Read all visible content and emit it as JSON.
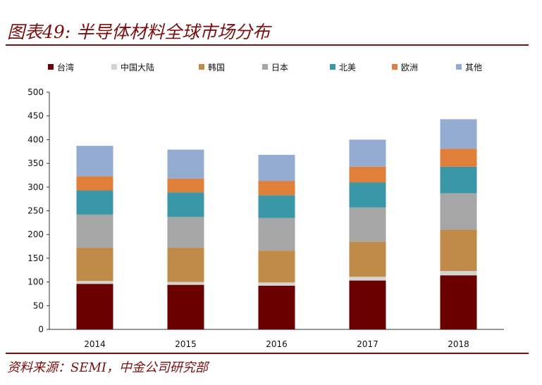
{
  "header": {
    "title": "图表49: 半导体材料全球市场分布"
  },
  "footer": {
    "source": "资料来源：SEMI，中金公司研究部"
  },
  "chart_data": {
    "type": "bar",
    "stacked": true,
    "title": "图表49: 半导体材料全球市场分布",
    "categories": [
      "2014",
      "2015",
      "2016",
      "2017",
      "2018"
    ],
    "ylim": [
      0,
      500
    ],
    "yticks": [
      0,
      50,
      100,
      150,
      200,
      250,
      300,
      350,
      400,
      450,
      500
    ],
    "legend_position": "top",
    "series": [
      {
        "name": "台湾",
        "color": "#6a0000",
        "values": [
          96,
          94,
          92,
          103,
          114
        ]
      },
      {
        "name": "中国大陆",
        "color": "#d3d3d3",
        "values": [
          6,
          6,
          7,
          8,
          9
        ]
      },
      {
        "name": "韩国",
        "color": "#c08a48",
        "values": [
          70,
          72,
          67,
          74,
          87
        ]
      },
      {
        "name": "日本",
        "color": "#a6a6a6",
        "values": [
          70,
          65,
          69,
          72,
          77
        ]
      },
      {
        "name": "北美",
        "color": "#3a97a8",
        "values": [
          51,
          52,
          48,
          53,
          56
        ]
      },
      {
        "name": "欧洲",
        "color": "#e07f3a",
        "values": [
          30,
          29,
          30,
          33,
          38
        ]
      },
      {
        "name": "其他",
        "color": "#94acd2",
        "values": [
          64,
          61,
          55,
          57,
          62
        ]
      }
    ]
  }
}
